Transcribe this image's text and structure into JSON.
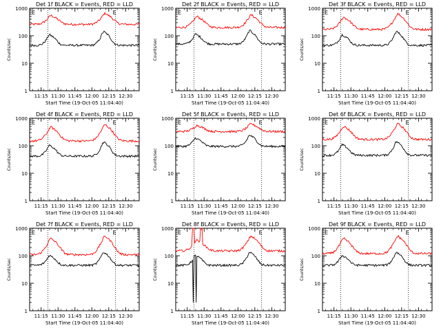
{
  "chart_data": [
    {
      "type": "line",
      "title": "Det 1f BLACK = Events, RED = LLD",
      "xlabel": "Start Time (19-Oct-05 11:04:40)",
      "ylabel": "Counts/sec",
      "yscale": "log",
      "ylim": [
        1,
        1000
      ],
      "xlim": [
        11.08,
        12.7
      ],
      "x_tick_labels": [
        "11:15",
        "11:30",
        "11:45",
        "12:00",
        "12:15",
        "12:30"
      ],
      "y_tick_labels": [
        "1",
        "10",
        "100",
        "1000"
      ],
      "markers": [
        {
          "x": 11.35,
          "label": "E"
        },
        {
          "x": 12.35,
          "label": "E"
        }
      ],
      "vlines": [
        11.35,
        12.35
      ],
      "grid": false,
      "legend": "none",
      "series": [
        {
          "color": "#ff0000",
          "base": 260,
          "peaks": [
            [
              11.42,
              480
            ],
            [
              12.22,
              560
            ]
          ],
          "width": 0.11,
          "dips": []
        },
        {
          "color": "#000000",
          "base": 45,
          "peaks": [
            [
              11.4,
              95
            ],
            [
              12.2,
              120
            ]
          ],
          "width": 0.09,
          "dips": []
        }
      ]
    },
    {
      "type": "line",
      "title": "Det 2f BLACK = Events, RED = LLD",
      "xlabel": "Start Time (19-Oct-05 11:04:40)",
      "ylabel": "Counts/sec",
      "yscale": "log",
      "ylim": [
        1,
        1000
      ],
      "xlim": [
        11.08,
        12.7
      ],
      "x_tick_labels": [
        "11:15",
        "11:30",
        "11:45",
        "12:00",
        "12:15",
        "12:30"
      ],
      "y_tick_labels": [
        "1",
        "10",
        "100",
        "1000"
      ],
      "markers": [
        {
          "x": 11.35,
          "label": "E"
        },
        {
          "x": 12.35,
          "label": "E"
        }
      ],
      "vlines": [
        11.35,
        12.35
      ],
      "grid": false,
      "legend": "none",
      "series": [
        {
          "color": "#ff0000",
          "base": 200,
          "peaks": [
            [
              11.42,
              430
            ],
            [
              12.22,
              480
            ]
          ],
          "width": 0.11,
          "dips": []
        },
        {
          "color": "#000000",
          "base": 50,
          "peaks": [
            [
              11.4,
              100
            ],
            [
              12.2,
              130
            ]
          ],
          "width": 0.09,
          "dips": []
        }
      ]
    },
    {
      "type": "line",
      "title": "Det 3f BLACK = Events, RED = LLD",
      "xlabel": "Start Time (19-Oct-05 11:04:40)",
      "ylabel": "Counts/sec",
      "yscale": "log",
      "ylim": [
        1,
        1000
      ],
      "xlim": [
        11.08,
        12.7
      ],
      "x_tick_labels": [
        "11:15",
        "11:30",
        "11:45",
        "12:00",
        "12:15",
        "12:30"
      ],
      "y_tick_labels": [
        "1",
        "10",
        "100",
        "1000"
      ],
      "markers": [
        {
          "x": 11.35,
          "label": "E"
        },
        {
          "x": 12.35,
          "label": "E"
        }
      ],
      "vlines": [
        11.35,
        12.35
      ],
      "grid": false,
      "legend": "none",
      "series": [
        {
          "color": "#ff0000",
          "base": 170,
          "peaks": [
            [
              11.42,
              400
            ],
            [
              12.22,
              520
            ]
          ],
          "width": 0.11,
          "dips": []
        },
        {
          "color": "#000000",
          "base": 45,
          "peaks": [
            [
              11.4,
              95
            ],
            [
              12.2,
              120
            ]
          ],
          "width": 0.09,
          "dips": []
        }
      ]
    },
    {
      "type": "line",
      "title": "Det 4f BLACK = Events, RED = LLD",
      "xlabel": "Start Time (19-Oct-05 11:04:40)",
      "ylabel": "Counts/sec",
      "yscale": "log",
      "ylim": [
        1,
        1000
      ],
      "xlim": [
        11.08,
        12.7
      ],
      "x_tick_labels": [
        "11:15",
        "11:30",
        "11:45",
        "12:00",
        "12:15",
        "12:30"
      ],
      "y_tick_labels": [
        "1",
        "10",
        "100",
        "1000"
      ],
      "markers": [
        {
          "x": 11.35,
          "label": "E"
        },
        {
          "x": 12.35,
          "label": "E"
        }
      ],
      "vlines": [
        11.35,
        12.35
      ],
      "grid": false,
      "legend": "none",
      "series": [
        {
          "color": "#ff0000",
          "base": 150,
          "peaks": [
            [
              11.42,
              400
            ],
            [
              12.22,
              480
            ]
          ],
          "width": 0.11,
          "dips": []
        },
        {
          "color": "#000000",
          "base": 42,
          "peaks": [
            [
              11.4,
              90
            ],
            [
              12.2,
              115
            ]
          ],
          "width": 0.09,
          "dips": []
        }
      ]
    },
    {
      "type": "line",
      "title": "Det 5f BLACK = Events, RED = LLD",
      "xlabel": "Start Time (19-Oct-05 11:04:40)",
      "ylabel": "Counts/sec",
      "yscale": "log",
      "ylim": [
        1,
        1000
      ],
      "xlim": [
        11.08,
        12.7
      ],
      "x_tick_labels": [
        "11:15",
        "11:30",
        "11:45",
        "12:00",
        "12:15",
        "12:30"
      ],
      "y_tick_labels": [
        "1",
        "10",
        "100",
        "1000"
      ],
      "markers": [
        {
          "x": 11.35,
          "label": "E"
        },
        {
          "x": 12.35,
          "label": "E"
        }
      ],
      "vlines": [
        11.35,
        12.35
      ],
      "grid": false,
      "legend": "none",
      "series": [
        {
          "color": "#ff0000",
          "base": 330,
          "peaks": [
            [
              11.42,
              500
            ],
            [
              12.22,
              560
            ]
          ],
          "width": 0.11,
          "dips": []
        },
        {
          "color": "#000000",
          "base": 95,
          "peaks": [
            [
              11.4,
              170
            ],
            [
              12.2,
              210
            ]
          ],
          "width": 0.09,
          "dips": []
        }
      ]
    },
    {
      "type": "line",
      "title": "Det 6f BLACK = Events, RED = LLD",
      "xlabel": "Start Time (19-Oct-05 11:04:40)",
      "ylabel": "Counts/sec",
      "yscale": "log",
      "ylim": [
        1,
        1000
      ],
      "xlim": [
        11.08,
        12.7
      ],
      "x_tick_labels": [
        "11:15",
        "11:30",
        "11:45",
        "12:00",
        "12:15",
        "12:30"
      ],
      "y_tick_labels": [
        "1",
        "10",
        "100",
        "1000"
      ],
      "markers": [
        {
          "x": 11.35,
          "label": "E"
        },
        {
          "x": 12.35,
          "label": "E"
        }
      ],
      "vlines": [
        11.35,
        12.35
      ],
      "grid": false,
      "legend": "none",
      "series": [
        {
          "color": "#ff0000",
          "base": 170,
          "peaks": [
            [
              11.42,
              430
            ],
            [
              12.22,
              520
            ]
          ],
          "width": 0.11,
          "dips": []
        },
        {
          "color": "#000000",
          "base": 45,
          "peaks": [
            [
              11.4,
              95
            ],
            [
              12.2,
              120
            ]
          ],
          "width": 0.09,
          "dips": []
        }
      ]
    },
    {
      "type": "line",
      "title": "Det 7f BLACK = Events, RED = LLD",
      "xlabel": "Start Time (19-Oct-05 11:04:40)",
      "ylabel": "Counts/sec",
      "yscale": "log",
      "ylim": [
        1,
        1000
      ],
      "xlim": [
        11.08,
        12.7
      ],
      "x_tick_labels": [
        "11:15",
        "11:30",
        "11:45",
        "12:00",
        "12:15",
        "12:30"
      ],
      "y_tick_labels": [
        "1",
        "10",
        "100",
        "1000"
      ],
      "markers": [
        {
          "x": 11.35,
          "label": "E"
        },
        {
          "x": 12.35,
          "label": "E"
        }
      ],
      "vlines": [
        11.35,
        12.35
      ],
      "grid": false,
      "legend": "none",
      "series": [
        {
          "color": "#ff0000",
          "base": 110,
          "peaks": [
            [
              11.42,
              350
            ],
            [
              12.22,
              420
            ]
          ],
          "width": 0.11,
          "dips": []
        },
        {
          "color": "#000000",
          "base": 45,
          "peaks": [
            [
              11.4,
              90
            ],
            [
              12.2,
              115
            ]
          ],
          "width": 0.09,
          "dips": []
        }
      ]
    },
    {
      "type": "line",
      "title": "Det 8f BLACK = Events, RED = LLD",
      "xlabel": "Start Time (19-Oct-05 11:04:40)",
      "ylabel": "Counts/sec",
      "yscale": "log",
      "ylim": [
        1,
        1000
      ],
      "xlim": [
        11.08,
        12.7
      ],
      "x_tick_labels": [
        "11:15",
        "11:30",
        "11:45",
        "12:00",
        "12:15",
        "12:30"
      ],
      "y_tick_labels": [
        "1",
        "10",
        "100",
        "1000"
      ],
      "markers": [
        {
          "x": 11.35,
          "label": "E"
        },
        {
          "x": 12.35,
          "label": "E"
        }
      ],
      "vlines": [
        11.35,
        12.35
      ],
      "grid": false,
      "legend": "none",
      "series": [
        {
          "color": "#ff0000",
          "base": 150,
          "peaks": [
            [
              11.42,
              320
            ],
            [
              12.22,
              430
            ]
          ],
          "width": 0.11,
          "dips": [],
          "spikes": [
            [
              11.32,
              11.35,
              1000
            ],
            [
              11.44,
              11.47,
              1000
            ]
          ]
        },
        {
          "color": "#000000",
          "base": 45,
          "peaks": [
            [
              11.4,
              90
            ],
            [
              12.2,
              115
            ]
          ],
          "width": 0.09,
          "dips": [
            [
              11.34,
              2
            ],
            [
              11.38,
              2
            ]
          ]
        }
      ]
    },
    {
      "type": "line",
      "title": "Det 9f BLACK = Events, RED = LLD",
      "xlabel": "Start Time (19-Oct-05 11:04:40)",
      "ylabel": "Counts/sec",
      "yscale": "log",
      "ylim": [
        1,
        1000
      ],
      "xlim": [
        11.08,
        12.7
      ],
      "x_tick_labels": [
        "11:15",
        "11:30",
        "11:45",
        "12:00",
        "12:15",
        "12:30"
      ],
      "y_tick_labels": [
        "1",
        "10",
        "100",
        "1000"
      ],
      "markers": [
        {
          "x": 11.35,
          "label": "E"
        },
        {
          "x": 12.35,
          "label": "E"
        }
      ],
      "vlines": [
        11.35,
        12.35
      ],
      "grid": false,
      "legend": "none",
      "series": [
        {
          "color": "#ff0000",
          "base": 120,
          "peaks": [
            [
              11.42,
              350
            ],
            [
              12.22,
              420
            ]
          ],
          "width": 0.11,
          "dips": []
        },
        {
          "color": "#000000",
          "base": 45,
          "peaks": [
            [
              11.4,
              90
            ],
            [
              12.2,
              115
            ]
          ],
          "width": 0.09,
          "dips": []
        }
      ]
    }
  ]
}
